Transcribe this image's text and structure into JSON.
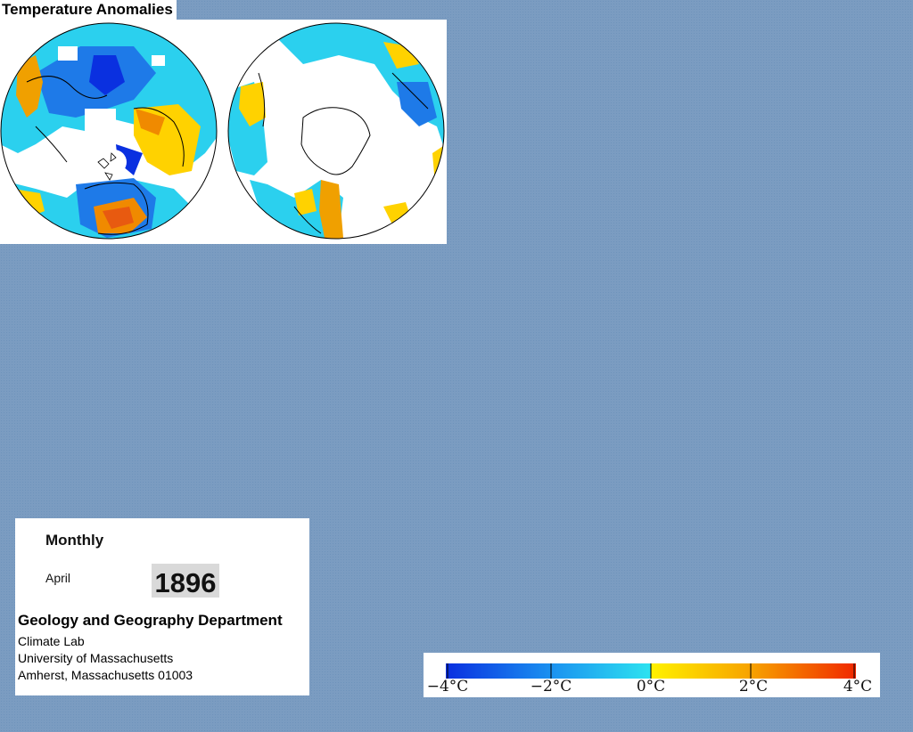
{
  "title": "Temperature Anomalies",
  "info": {
    "period": "Monthly",
    "month": "April",
    "year": "1896",
    "department": "Geology and Geography Department",
    "address_lines": [
      "Climate Lab",
      "University of Massachusetts",
      "Amherst, Massachusetts 01003"
    ]
  },
  "legend": {
    "ticks": [
      "−4°C",
      "−2°C",
      "0°C",
      "2°C",
      "4°C"
    ],
    "color_stops": [
      "#0a2fe0",
      "#1a8ff0",
      "#2de3f0",
      "#fff200",
      "#f7a000",
      "#f02800"
    ]
  },
  "colors": {
    "background": "#7b9cc1",
    "no_data": "#ffffff",
    "cold": "#1e7ae8",
    "very_cold": "#0a30e0",
    "cool": "#2bd0ee",
    "warm": "#ffd200",
    "hot": "#f08a00"
  }
}
